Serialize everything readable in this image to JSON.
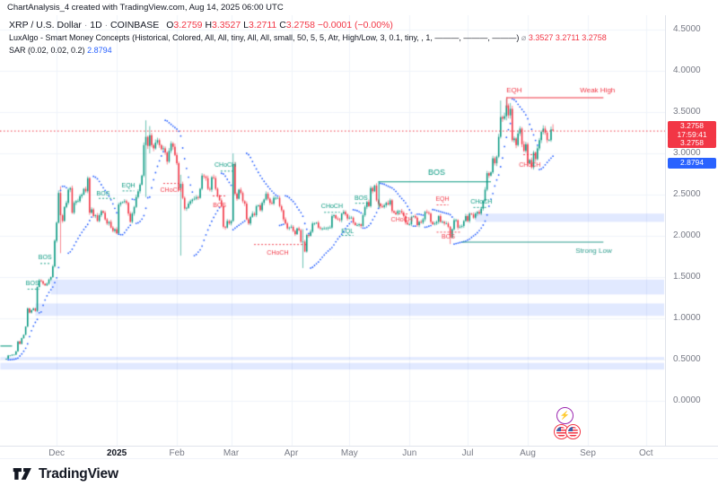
{
  "header": {
    "title": "ChartAnalysis_4 created with TradingView.com, Aug 14, 2025 06:00 UTC"
  },
  "legend": {
    "line1": {
      "symbol": "XRP / U.S. Dollar",
      "sep": "·",
      "timeframe": "1D",
      "exchange": "COINBASE",
      "o": "O",
      "o_v": "3.2759",
      "h": "H",
      "h_v": "3.3527",
      "l": "L",
      "l_v": "3.2711",
      "c": "C",
      "c_v": "3.2758",
      "change": "−0.0001 (−0.00%)"
    },
    "line2": {
      "name": "LuxAlgo - Smart Money Concepts",
      "params": "(Historical, Colored, All, All, tiny, All, All, small, 50, 5, 5, Atr, High/Low, 3, 0.1, tiny, , 1, ———, ———, ———)",
      "empty_sym": "⌀",
      "v1": "3.3527",
      "v2": "3.2711",
      "v3": "3.2758"
    },
    "line3": {
      "name": "SAR (0.02, 0.02, 0.2)",
      "value": "2.8794"
    }
  },
  "axis": {
    "y_ticks": [
      {
        "label": "4.5000",
        "price": 4.5
      },
      {
        "label": "4.0000",
        "price": 4.0
      },
      {
        "label": "3.5000",
        "price": 3.5
      },
      {
        "label": "3.0000",
        "price": 3.0
      },
      {
        "label": "2.5000",
        "price": 2.5
      },
      {
        "label": "2.0000",
        "price": 2.0
      },
      {
        "label": "1.5000",
        "price": 1.5
      },
      {
        "label": "1.0000",
        "price": 1.0
      },
      {
        "label": "0.5000",
        "price": 0.5
      },
      {
        "label": "0.0000",
        "price": 0.0
      }
    ],
    "x_ticks": [
      {
        "label": "Dec",
        "day": 26
      },
      {
        "label": "2025",
        "day": 57,
        "bold": true
      },
      {
        "label": "Feb",
        "day": 88
      },
      {
        "label": "Mar",
        "day": 116
      },
      {
        "label": "Apr",
        "day": 147
      },
      {
        "label": "May",
        "day": 177
      },
      {
        "label": "Jun",
        "day": 208
      },
      {
        "label": "Jul",
        "day": 238
      },
      {
        "label": "Aug",
        "day": 269
      },
      {
        "label": "Sep",
        "day": 300
      },
      {
        "label": "Oct",
        "day": 330
      }
    ],
    "badges": [
      {
        "lines": [
          "3.2758",
          "17:59:41"
        ],
        "price": 3.2758,
        "bg": "#F23645",
        "dy": 0
      },
      {
        "lines": [
          "3.2758"
        ],
        "price": 3.2758,
        "bg": "#F23645",
        "dy": 14
      },
      {
        "lines": [
          "2.8794"
        ],
        "price": 2.8794,
        "bg": "#2962FF",
        "dy": 0
      }
    ]
  },
  "chart_data": {
    "type": "candlestick",
    "title": "XRP / U.S. Dollar 1D with LuxAlgo Smart Money Concepts and Parabolic SAR",
    "start_date": "2024-11-05",
    "ylim": [
      0.0,
      4.5
    ],
    "y_step": 0.5,
    "grid": true,
    "last_price": 3.2758,
    "sar": {
      "start": 0.02,
      "inc": 0.02,
      "max": 0.2,
      "last_value": 2.8794
    },
    "closes": [
      0.51,
      0.55,
      0.55,
      0.56,
      0.56,
      0.6,
      0.72,
      0.69,
      0.76,
      0.8,
      0.9,
      1.12,
      1.07,
      1.1,
      1.12,
      1.09,
      1.38,
      1.46,
      1.45,
      1.42,
      1.4,
      1.42,
      1.47,
      1.5,
      1.63,
      1.94,
      2.16,
      2.52,
      2.25,
      2.18,
      2.35,
      2.4,
      2.56,
      2.58,
      2.28,
      2.4,
      2.42,
      2.42,
      2.48,
      2.5,
      2.57,
      2.54,
      2.7,
      2.28,
      2.32,
      2.24,
      2.25,
      2.18,
      2.25,
      2.3,
      2.28,
      2.2,
      2.15,
      2.17,
      2.1,
      2.06,
      2.08,
      2.03,
      2.38,
      2.4,
      2.41,
      2.42,
      2.4,
      2.27,
      2.17,
      2.27,
      2.35,
      2.47,
      2.54,
      2.62,
      2.73,
      3.1,
      3.2,
      3.09,
      3.22,
      3.1,
      3.06,
      3.13,
      3.16,
      3.1,
      3.05,
      3.06,
      3.01,
      2.9,
      3.03,
      3.12,
      3.08,
      2.98,
      2.88,
      2.57,
      2.63,
      2.46,
      2.33,
      2.34,
      2.39,
      2.42,
      2.44,
      2.45,
      2.47,
      2.46,
      2.57,
      2.73,
      2.72,
      2.7,
      2.57,
      2.56,
      2.71,
      2.7,
      2.57,
      2.49,
      2.43,
      2.36,
      2.11,
      2.1,
      2.18,
      2.15,
      2.18,
      2.87,
      2.51,
      2.45,
      2.56,
      2.52,
      2.42,
      2.39,
      2.2,
      2.15,
      2.23,
      2.27,
      2.25,
      2.36,
      2.37,
      2.31,
      2.4,
      2.44,
      2.51,
      2.45,
      2.4,
      2.39,
      2.46,
      2.46,
      2.46,
      2.36,
      2.31,
      2.2,
      2.15,
      2.09,
      2.1,
      2.11,
      2.06,
      2.02,
      2.09,
      2.07,
      1.93,
      1.93,
      1.81,
      2.01,
      2.0,
      2.05,
      2.15,
      2.15,
      2.16,
      2.1,
      2.09,
      2.09,
      2.09,
      2.09,
      2.1,
      2.1,
      2.24,
      2.25,
      2.21,
      2.2,
      2.19,
      2.27,
      2.29,
      2.26,
      2.21,
      2.22,
      2.22,
      2.16,
      2.13,
      2.13,
      2.14,
      2.12,
      2.25,
      2.35,
      2.41,
      2.36,
      2.58,
      2.54,
      2.61,
      2.43,
      2.39,
      2.36,
      2.35,
      2.37,
      2.4,
      2.38,
      2.43,
      2.3,
      2.28,
      2.27,
      2.3,
      2.3,
      2.28,
      2.24,
      2.16,
      2.14,
      2.14,
      2.23,
      2.24,
      2.22,
      2.13,
      2.17,
      2.16,
      2.2,
      2.29,
      2.28,
      2.27,
      2.17,
      2.14,
      2.15,
      2.17,
      2.24,
      2.17,
      2.17,
      2.15,
      2.15,
      2.11,
      1.98,
      2.08,
      2.19,
      2.19,
      2.1,
      2.11,
      2.12,
      2.18,
      2.24,
      2.18,
      2.27,
      2.26,
      2.22,
      2.27,
      2.29,
      2.27,
      2.33,
      2.42,
      2.56,
      2.76,
      2.73,
      2.77,
      2.94,
      2.88,
      2.96,
      3.2,
      3.44,
      3.42,
      3.45,
      3.58,
      3.46,
      3.54,
      3.16,
      3.18,
      3.1,
      3.24,
      3.3,
      3.11,
      3.03,
      3.11,
      2.88,
      2.92,
      2.83,
      3.01,
      2.93,
      3.06,
      3.16,
      3.26,
      3.3,
      3.25,
      3.16,
      3.16,
      3.29,
      3.2758
    ],
    "wicks": {
      "28": [
        2.6,
        1.79
      ],
      "72": [
        3.4,
        2.47
      ],
      "74": [
        3.33,
        3.0
      ],
      "90": [
        2.74,
        1.76
      ],
      "117": [
        3.0,
        2.17
      ],
      "153": [
        2.08,
        1.61
      ],
      "229": [
        2.12,
        1.9
      ],
      "255": [
        3.64,
        3.18
      ],
      "258": [
        3.66,
        3.4
      ],
      "260": [
        3.61,
        3.42
      ],
      "277": [
        3.34,
        3.23
      ],
      "282": [
        3.3527,
        3.2711
      ]
    },
    "price_line": {
      "price": 3.2758,
      "color": "r",
      "style": "dotted"
    },
    "overlays": {
      "lines": [
        {
          "d1": -3,
          "d2": 3,
          "p": 0.67,
          "c": "g"
        },
        {
          "d1": 192,
          "d2": 250,
          "p": 2.66,
          "c": "g"
        },
        {
          "d1": 235,
          "d2": 308,
          "p": 1.93,
          "c": "t"
        },
        {
          "d1": 258,
          "d2": 308,
          "p": 3.68,
          "c": "r"
        }
      ],
      "vlines": [
        {
          "d": 192,
          "p1": 2.66,
          "p2": 2.34,
          "c": "g"
        },
        {
          "d": 258,
          "p1": 3.68,
          "p2": 3.55,
          "c": "r"
        }
      ],
      "dashes": [
        {
          "d1": 11,
          "d2": 17,
          "p": 1.36,
          "c": "g"
        },
        {
          "d1": 17.6,
          "d2": 23,
          "p": 1.67,
          "c": "g"
        },
        {
          "d1": 47.7,
          "d2": 57,
          "p": 2.46,
          "c": "g"
        },
        {
          "d1": 60,
          "d2": 66,
          "p": 2.55,
          "c": "g"
        },
        {
          "d1": 110.6,
          "d2": 118,
          "p": 2.79,
          "c": "g"
        },
        {
          "d1": 164,
          "d2": 172,
          "p": 2.29,
          "c": "g"
        },
        {
          "d1": 173,
          "d2": 179,
          "p": 2.01,
          "c": "g"
        },
        {
          "d1": 180,
          "d2": 187,
          "p": 2.4,
          "c": "g"
        },
        {
          "d1": 241,
          "d2": 248,
          "p": 2.35,
          "c": "g"
        },
        {
          "d1": 81,
          "d2": 89,
          "p": 2.64,
          "c": "r"
        },
        {
          "d1": 106.5,
          "d2": 113.4,
          "p": 2.49,
          "c": "r"
        },
        {
          "d1": 127.8,
          "d2": 154.6,
          "p": 1.9,
          "c": "r"
        },
        {
          "d1": 200.5,
          "d2": 207.4,
          "p": 2.27,
          "c": "r"
        },
        {
          "d1": 222,
          "d2": 228,
          "p": 2.38,
          "c": "r"
        },
        {
          "d1": 222,
          "d2": 234,
          "p": 2.05,
          "c": "r"
        },
        {
          "d1": 266.7,
          "d2": 274,
          "p": 2.99,
          "c": "r"
        }
      ],
      "labels": [
        {
          "d": 13.5,
          "p": 1.43,
          "t": "BOS",
          "c": "g"
        },
        {
          "d": 20,
          "p": 1.74,
          "t": "BOS",
          "c": "g"
        },
        {
          "d": 50,
          "p": 2.52,
          "t": "BOS",
          "c": "g"
        },
        {
          "d": 63,
          "p": 2.61,
          "t": "EQH",
          "c": "g"
        },
        {
          "d": 113,
          "p": 2.86,
          "t": "CHoCH",
          "c": "g"
        },
        {
          "d": 168,
          "p": 2.36,
          "t": "CHoCH",
          "c": "g"
        },
        {
          "d": 176,
          "p": 2.06,
          "t": "EQL",
          "c": "g"
        },
        {
          "d": 183,
          "p": 2.46,
          "t": "BOS",
          "c": "g"
        },
        {
          "d": 222,
          "p": 2.77,
          "t": "BOS",
          "c": "g",
          "s": 9
        },
        {
          "d": 245,
          "p": 2.42,
          "t": "CHoCH",
          "c": "g"
        },
        {
          "d": 303,
          "p": 1.82,
          "t": "Strong Low",
          "c": "t",
          "s": 8
        },
        {
          "d": 85,
          "p": 2.56,
          "t": "CHoCH",
          "c": "r"
        },
        {
          "d": 110,
          "p": 2.37,
          "t": "BOS",
          "c": "r"
        },
        {
          "d": 140,
          "p": 1.8,
          "t": "CHoCH",
          "c": "r"
        },
        {
          "d": 204,
          "p": 2.2,
          "t": "CHoCH",
          "c": "r"
        },
        {
          "d": 225,
          "p": 2.45,
          "t": "EQH",
          "c": "r"
        },
        {
          "d": 228,
          "p": 1.99,
          "t": "BOS",
          "c": "r"
        },
        {
          "d": 262,
          "p": 3.77,
          "t": "EQH",
          "c": "r",
          "s": 8
        },
        {
          "d": 305,
          "p": 3.77,
          "t": "Weak High",
          "c": "r",
          "s": 8
        },
        {
          "d": 270,
          "p": 2.86,
          "t": "CHoCH",
          "c": "r"
        }
      ],
      "bands": [
        {
          "d1": 23,
          "d2": 340,
          "p1": 1.29,
          "p2": 1.47
        },
        {
          "d1": 15,
          "d2": 340,
          "p1": 1.03,
          "p2": 1.18
        },
        {
          "d1": -3,
          "d2": 340,
          "p1": 0.5,
          "p2": 0.53
        },
        {
          "d1": -3,
          "d2": 340,
          "p1": 0.38,
          "p2": 0.46
        },
        {
          "d1": 242,
          "d2": 340,
          "p1": 2.17,
          "p2": 2.27
        }
      ]
    },
    "event_markers": [
      {
        "day": 288,
        "y": 463,
        "type": "lightning"
      },
      {
        "day": 286.5,
        "y": 481,
        "type": "flag-us"
      },
      {
        "day": 292.5,
        "y": 481,
        "type": "flag-us"
      }
    ]
  },
  "colors": {
    "up": "#089981",
    "down": "#F23645",
    "g": "#089981",
    "r": "#F23645",
    "t": "#2F9E8F",
    "sar": "#2962FF",
    "band": "rgba(41,98,255,0.14)",
    "grid": "#f0f3fa",
    "badge_red": "#F23645",
    "badge_blue": "#2962FF"
  },
  "footer": {
    "brand": "TradingView"
  }
}
